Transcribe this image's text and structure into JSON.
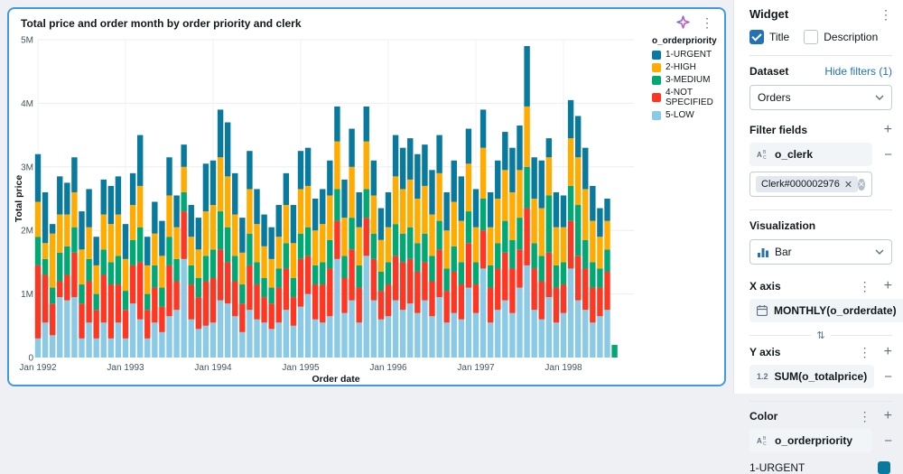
{
  "widget_card": {
    "title": "Total price and order month by order priority and clerk",
    "border_color": "#4299e0"
  },
  "chart_data": {
    "type": "bar",
    "stacked": true,
    "title": "Total price and order month by order priority and clerk",
    "xlabel": "Order date",
    "ylabel": "Total price",
    "values_unit": "millions of total price (M)",
    "ylim": [
      0,
      5
    ],
    "y_tick_labels": [
      "0",
      "1M",
      "2M",
      "3M",
      "4M",
      "5M"
    ],
    "x_start_month": "Jan 1992",
    "x_months": 80,
    "x_tick_every": 12,
    "x_tick_labels": [
      "Jan 1992",
      "Jan 1993",
      "Jan 1994",
      "Jan 1995",
      "Jan 1996",
      "Jan 1997",
      "Jan 1998"
    ],
    "grid": true,
    "legend_title": "o_orderpriority",
    "legend_position": "top-right",
    "stack_order_bottom_to_top": [
      "5-LOW",
      "4-NOT SPECIFIED",
      "3-MEDIUM",
      "2-HIGH",
      "1-URGENT"
    ],
    "series": [
      {
        "name": "1-URGENT",
        "color": "#077a9d",
        "values": [
          0.75,
          0.8,
          0.15,
          0.6,
          0.5,
          0.55,
          0.6,
          0.6,
          0.45,
          0.55,
          0.6,
          0.6,
          0.55,
          0.5,
          0.8,
          0.45,
          0.5,
          0.55,
          0.6,
          0.5,
          0.35,
          0.5,
          0.5,
          0.75,
          0.7,
          0.75,
          0.85,
          0.65,
          0.55,
          0.6,
          0.55,
          0.5,
          0.5,
          0.5,
          0.5,
          0.6,
          0.6,
          0.6,
          0.5,
          0.55,
          0.55,
          0.55,
          0.6,
          0.6,
          0.55,
          0.55,
          0.55,
          0.5,
          0.55,
          0.65,
          0.65,
          0.65,
          0.7,
          0.65,
          0.7,
          0.6,
          0.6,
          0.65,
          0.7,
          0.55,
          0.6,
          0.6,
          0.55,
          0.6,
          0.6,
          0.7,
          0.7,
          0.95,
          0.65,
          0.75,
          0.3,
          0.55,
          0.5,
          0.6,
          0.65,
          0.65,
          0.55,
          0.45,
          0.35,
          0.0
        ]
      },
      {
        "name": "2-HIGH",
        "color": "#ffab00",
        "values": [
          0.55,
          0.25,
          0.85,
          0.6,
          0.5,
          0.55,
          0.55,
          0.5,
          0.45,
          0.55,
          0.6,
          0.65,
          0.5,
          0.55,
          0.65,
          0.45,
          0.5,
          0.5,
          0.65,
          0.5,
          0.4,
          0.45,
          0.45,
          0.7,
          0.7,
          0.85,
          0.8,
          0.65,
          0.5,
          0.7,
          0.6,
          0.5,
          0.45,
          0.5,
          0.6,
          0.55,
          0.7,
          0.65,
          0.55,
          0.6,
          0.7,
          0.75,
          0.6,
          0.8,
          0.6,
          0.75,
          0.6,
          0.5,
          0.55,
          0.75,
          0.7,
          0.75,
          0.7,
          0.75,
          0.65,
          0.75,
          0.6,
          0.7,
          0.65,
          0.75,
          0.55,
          0.8,
          0.6,
          0.7,
          0.8,
          0.75,
          0.75,
          0.95,
          0.7,
          0.75,
          0.6,
          0.6,
          0.55,
          0.75,
          0.75,
          0.8,
          0.65,
          0.5,
          0.45,
          0.0
        ]
      },
      {
        "name": "3-MEDIUM",
        "color": "#00a972",
        "values": [
          0.45,
          0.25,
          0.25,
          0.45,
          0.45,
          0.4,
          0.3,
          0.35,
          0.25,
          0.4,
          0.35,
          0.45,
          0.3,
          0.4,
          0.55,
          0.25,
          0.35,
          0.3,
          0.45,
          0.35,
          0.3,
          0.3,
          0.3,
          0.4,
          0.45,
          0.6,
          0.55,
          0.4,
          0.3,
          0.5,
          0.35,
          0.3,
          0.25,
          0.3,
          0.4,
          0.3,
          0.4,
          0.45,
          0.3,
          0.35,
          0.45,
          0.5,
          0.35,
          0.5,
          0.35,
          0.45,
          0.4,
          0.3,
          0.35,
          0.5,
          0.45,
          0.5,
          0.45,
          0.45,
          0.4,
          0.45,
          0.35,
          0.4,
          0.35,
          0.5,
          0.35,
          0.5,
          0.35,
          0.4,
          0.5,
          0.45,
          0.5,
          0.65,
          0.4,
          0.4,
          0.9,
          0.35,
          0.35,
          0.55,
          0.8,
          0.45,
          0.4,
          0.3,
          0.35,
          0.2
        ]
      },
      {
        "name": "4-NOT SPECIFIED",
        "color": "#ff3621",
        "values": [
          1.15,
          0.75,
          0.5,
          0.25,
          0.4,
          0.7,
          0.55,
          0.65,
          0.45,
          0.75,
          0.85,
          0.6,
          0.45,
          0.6,
          0.9,
          0.45,
          0.55,
          0.4,
          0.8,
          0.45,
          0.75,
          0.55,
          0.5,
          0.7,
          0.7,
          0.8,
          0.65,
          0.55,
          0.45,
          0.7,
          0.55,
          0.4,
          0.4,
          0.55,
          0.65,
          0.45,
          0.75,
          0.6,
          0.55,
          0.6,
          0.75,
          0.6,
          0.55,
          0.8,
          0.55,
          0.6,
          0.65,
          0.45,
          0.5,
          0.7,
          0.75,
          0.7,
          0.65,
          0.6,
          0.55,
          0.75,
          0.5,
          0.65,
          0.55,
          0.7,
          0.45,
          0.6,
          0.55,
          0.65,
          0.75,
          0.7,
          0.6,
          0.9,
          0.65,
          0.6,
          0.7,
          0.55,
          0.45,
          0.75,
          0.7,
          0.65,
          0.55,
          0.45,
          0.6,
          0.0
        ]
      },
      {
        "name": "5-LOW",
        "color": "#8bcae7",
        "values": [
          0.3,
          0.55,
          0.35,
          0.95,
          0.9,
          0.95,
          0.3,
          0.55,
          0.3,
          0.55,
          0.3,
          0.55,
          0.3,
          0.85,
          0.6,
          0.3,
          0.55,
          0.4,
          0.65,
          0.75,
          1.55,
          0.6,
          0.45,
          0.5,
          0.55,
          0.9,
          0.85,
          0.65,
          0.4,
          0.75,
          0.6,
          0.55,
          0.45,
          0.55,
          0.75,
          0.5,
          0.8,
          1.0,
          0.6,
          0.55,
          0.65,
          1.55,
          0.7,
          0.9,
          0.55,
          1.6,
          0.9,
          0.6,
          0.65,
          0.9,
          0.75,
          0.85,
          0.7,
          0.9,
          0.65,
          0.95,
          0.55,
          0.7,
          0.6,
          1.1,
          0.7,
          1.4,
          0.55,
          0.75,
          0.9,
          0.7,
          1.1,
          1.45,
          0.75,
          0.6,
          0.95,
          0.55,
          0.7,
          1.4,
          0.9,
          0.75,
          0.55,
          0.65,
          0.75,
          0.0
        ]
      }
    ]
  },
  "panel": {
    "accent": "#2272b4",
    "widget_label": "Widget",
    "title_checkbox": {
      "label": "Title",
      "checked": true
    },
    "description_checkbox": {
      "label": "Description",
      "checked": false
    },
    "dataset_label": "Dataset",
    "hide_filters_link": "Hide filters (1)",
    "dataset_value": "Orders",
    "filter_fields_label": "Filter fields",
    "filter_field": "o_clerk",
    "filter_value_chip": "Clerk#000002976",
    "visualization_label": "Visualization",
    "visualization_value": "Bar",
    "x_axis_label": "X axis",
    "x_axis_field": "MONTHLY(o_orderdate)",
    "y_axis_label": "Y axis",
    "y_axis_field": "SUM(o_totalprice)",
    "color_label": "Color",
    "color_field": "o_orderpriority",
    "color_items": [
      {
        "label": "1-URGENT",
        "color": "#077a9d"
      }
    ]
  }
}
